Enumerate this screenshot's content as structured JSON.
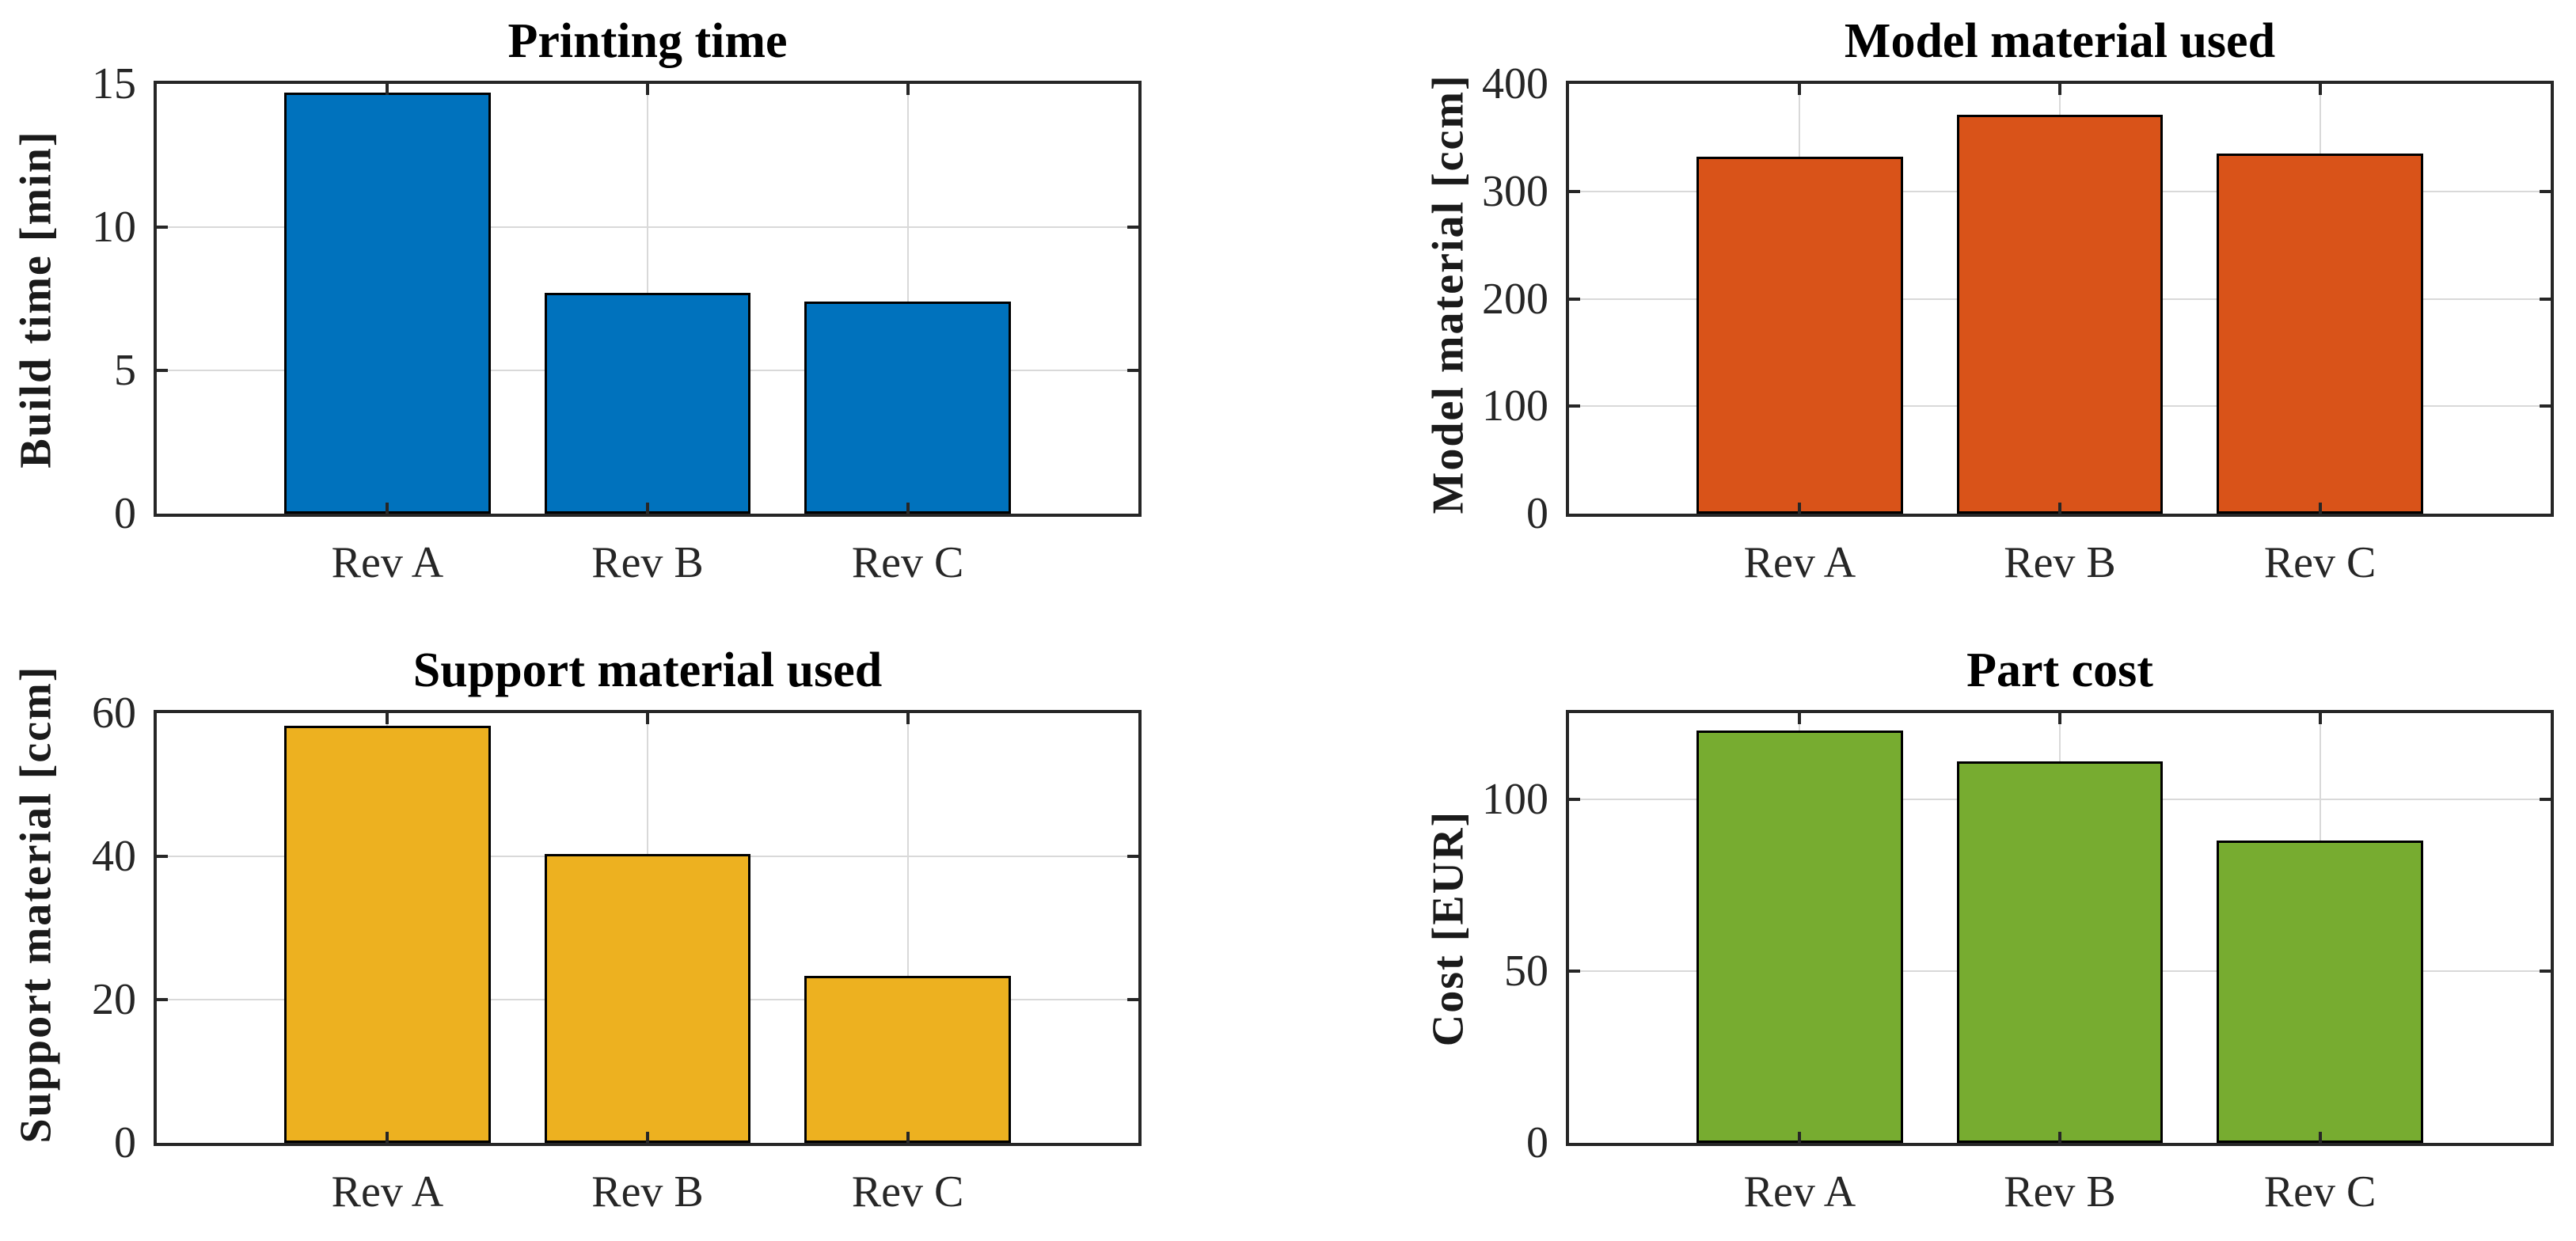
{
  "figure": {
    "background": "#ffffff",
    "rows": 2,
    "cols": 2
  },
  "style": {
    "axis_color": "#262626",
    "grid_color": "#d9d9d9",
    "tick_label_color": "#262626",
    "title_color": "#000000",
    "bar_edge_color": "#000000"
  },
  "chart_data": [
    {
      "id": "printing-time",
      "type": "bar",
      "title": "Printing time",
      "xlabel": "",
      "ylabel": "Build time [min]",
      "categories": [
        "Rev A",
        "Rev B",
        "Rev C"
      ],
      "values": [
        14.7,
        7.7,
        7.4
      ],
      "ylim": [
        0,
        15
      ],
      "yticks": [
        0,
        5,
        10,
        15
      ],
      "bar_color": "#0072BD",
      "grid": true,
      "legend": null
    },
    {
      "id": "model-material-used",
      "type": "bar",
      "title": "Model material used",
      "xlabel": "",
      "ylabel": "Model material [ccm]",
      "categories": [
        "Rev A",
        "Rev B",
        "Rev C"
      ],
      "values": [
        332,
        371,
        335
      ],
      "ylim": [
        0,
        400
      ],
      "yticks": [
        0,
        100,
        200,
        300,
        400
      ],
      "bar_color": "#D95319",
      "grid": true,
      "legend": null
    },
    {
      "id": "support-material-used",
      "type": "bar",
      "title": "Support material used",
      "xlabel": "",
      "ylabel": "Support material [ccm]",
      "categories": [
        "Rev A",
        "Rev B",
        "Rev C"
      ],
      "values": [
        58.2,
        40.3,
        23.3
      ],
      "ylim": [
        0,
        60
      ],
      "yticks": [
        0,
        20,
        40,
        60
      ],
      "bar_color": "#EDB120",
      "grid": true,
      "legend": null
    },
    {
      "id": "part-cost",
      "type": "bar",
      "title": "Part cost",
      "xlabel": "",
      "ylabel": "Cost [EUR]",
      "categories": [
        "Rev A",
        "Rev B",
        "Rev C"
      ],
      "values": [
        120,
        111,
        88
      ],
      "ylim": [
        0,
        125
      ],
      "yticks": [
        0,
        50,
        100
      ],
      "bar_color": "#77AC30",
      "grid": true,
      "legend": null
    }
  ]
}
